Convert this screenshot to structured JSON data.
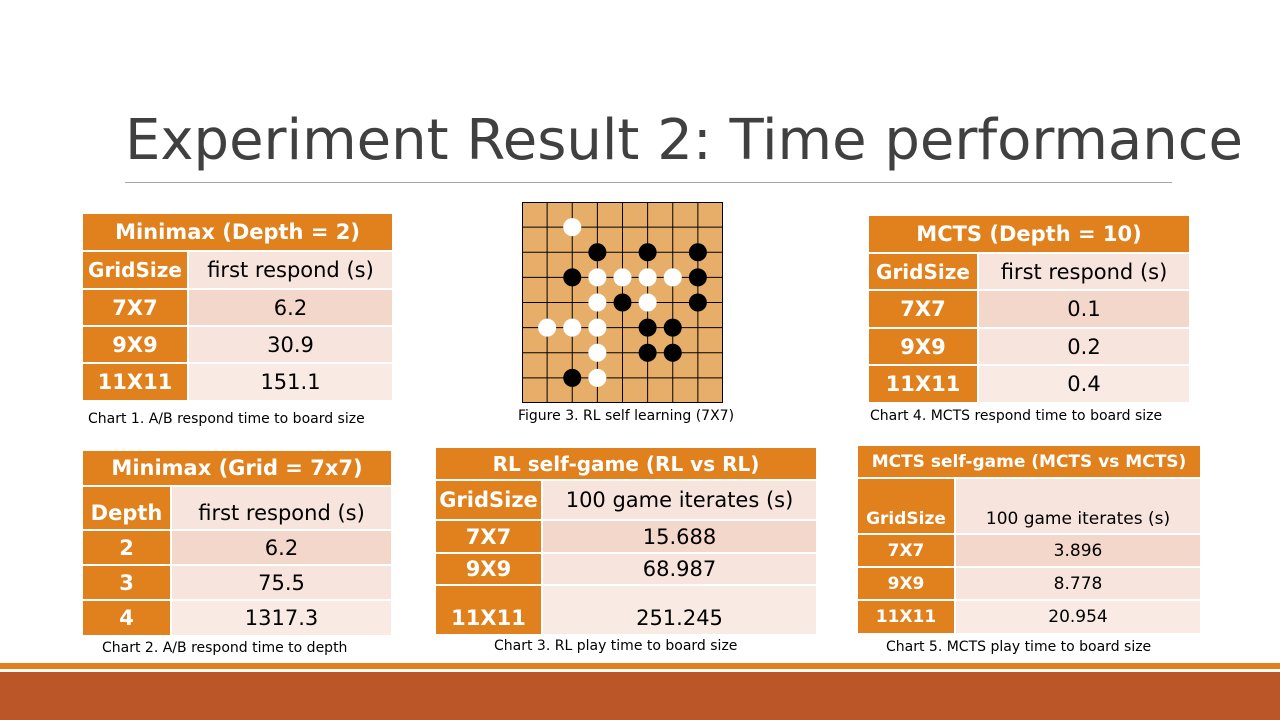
{
  "slide": {
    "title": "Experiment Result 2: Time performance"
  },
  "colors": {
    "accent": "#e0811e",
    "footer": "#bb5628",
    "row_light": "#f7e4dc",
    "row_dark": "#f4d7cb"
  },
  "table1": {
    "title": "Minimax (Depth = 2)",
    "headers": [
      "GridSize",
      "first respond (s)"
    ],
    "rows": [
      [
        "7X7",
        "6.2"
      ],
      [
        "9X9",
        "30.9"
      ],
      [
        "11X11",
        "151.1"
      ]
    ],
    "caption": "Chart 1. A/B respond time to board size"
  },
  "table2": {
    "title": "Minimax (Grid = 7x7)",
    "headers": [
      "Depth",
      "first respond (s)"
    ],
    "rows": [
      [
        "2",
        "6.2"
      ],
      [
        "3",
        "75.5"
      ],
      [
        "4",
        "1317.3"
      ]
    ],
    "caption": "Chart 2. A/B respond time to depth"
  },
  "figure": {
    "caption": "Figure 3. RL self learning (7X7)",
    "board_size": 9,
    "white": [
      [
        2,
        1
      ],
      [
        3,
        3
      ],
      [
        4,
        3
      ],
      [
        5,
        3
      ],
      [
        6,
        3
      ],
      [
        3,
        4
      ],
      [
        5,
        4
      ],
      [
        1,
        5
      ],
      [
        2,
        5
      ],
      [
        3,
        5
      ],
      [
        3,
        6
      ],
      [
        3,
        7
      ]
    ],
    "black": [
      [
        3,
        2
      ],
      [
        5,
        2
      ],
      [
        7,
        2
      ],
      [
        2,
        3
      ],
      [
        7,
        3
      ],
      [
        4,
        4
      ],
      [
        7,
        4
      ],
      [
        5,
        5
      ],
      [
        6,
        5
      ],
      [
        5,
        6
      ],
      [
        6,
        6
      ],
      [
        2,
        7
      ]
    ]
  },
  "table3": {
    "title": "RL self-game (RL vs RL)",
    "headers": [
      "GridSize",
      "100 game iterates (s)"
    ],
    "rows": [
      [
        "7X7",
        "15.688"
      ],
      [
        "9X9",
        "68.987"
      ],
      [
        "11X11",
        "251.245"
      ]
    ],
    "caption": "Chart 3. RL play time to board size"
  },
  "table4": {
    "title": "MCTS (Depth = 10)",
    "headers": [
      "GridSize",
      "first respond (s)"
    ],
    "rows": [
      [
        "7X7",
        "0.1"
      ],
      [
        "9X9",
        "0.2"
      ],
      [
        "11X11",
        "0.4"
      ]
    ],
    "caption": "Chart 4. MCTS respond time to board size"
  },
  "table5": {
    "title": "MCTS self-game (MCTS vs MCTS)",
    "headers": [
      "GridSize",
      "100 game iterates (s)"
    ],
    "rows": [
      [
        "7X7",
        "3.896"
      ],
      [
        "9X9",
        "8.778"
      ],
      [
        "11X11",
        "20.954"
      ]
    ],
    "caption": "Chart 5. MCTS play time to board size"
  }
}
